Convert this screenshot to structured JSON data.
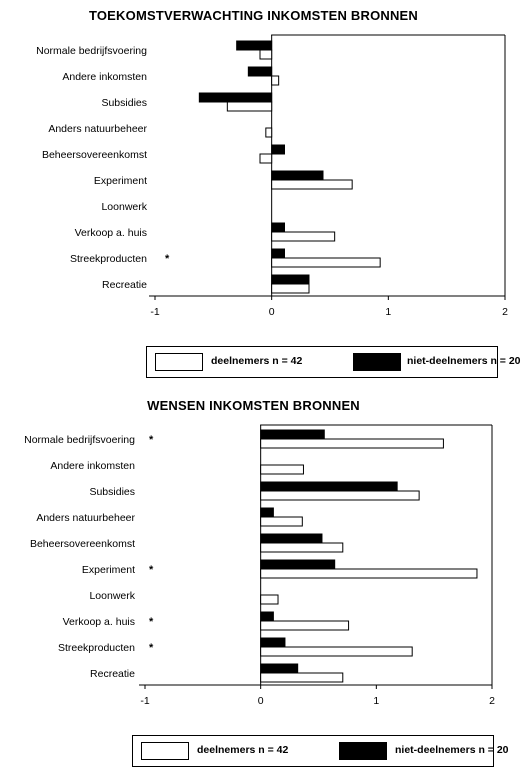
{
  "chart_data": [
    {
      "type": "bar",
      "orientation": "horizontal",
      "title": "TOEKOMSTVERWACHTING INKOMSTEN BRONNEN",
      "categories": [
        "Normale bedrijfsvoering",
        "Andere inkomsten",
        "Subsidies",
        "Anders natuurbeheer",
        "Beheersovereenkomst",
        "Experiment",
        "Loonwerk",
        "Verkoop a. huis",
        "Streekproducten",
        "Recreatie"
      ],
      "series": [
        {
          "name": "deelnemers n = 42",
          "color": "#ffffff",
          "values": [
            -0.1,
            0.06,
            -0.38,
            -0.05,
            -0.1,
            0.69,
            0.0,
            0.54,
            0.93,
            0.32
          ]
        },
        {
          "name": "niet-deelnemers n = 20",
          "color": "#000000",
          "values": [
            -0.3,
            -0.2,
            -0.62,
            0.0,
            0.11,
            0.44,
            0.0,
            0.11,
            0.11,
            0.32
          ]
        }
      ],
      "significant": [
        "",
        "",
        "",
        "",
        "",
        "",
        "",
        "",
        "*",
        ""
      ],
      "xlim": [
        -1,
        2
      ],
      "xticks": [
        "-1",
        "0",
        "1",
        "2"
      ],
      "legend": "bottom"
    },
    {
      "type": "bar",
      "orientation": "horizontal",
      "title": "WENSEN INKOMSTEN BRONNEN",
      "categories": [
        "Normale bedrijfsvoering",
        "Andere inkomsten",
        "Subsidies",
        "Anders natuurbeheer",
        "Beheersovereenkomst",
        "Experiment",
        "Loonwerk",
        "Verkoop a. huis",
        "Streekproducten",
        "Recreatie"
      ],
      "series": [
        {
          "name": "deelnemers n = 42",
          "color": "#ffffff",
          "values": [
            1.58,
            0.37,
            1.37,
            0.36,
            0.71,
            1.87,
            0.15,
            0.76,
            1.31,
            0.71
          ]
        },
        {
          "name": "niet-deelnemers n = 20",
          "color": "#000000",
          "values": [
            0.55,
            0.0,
            1.18,
            0.11,
            0.53,
            0.64,
            0.0,
            0.11,
            0.21,
            0.32
          ]
        }
      ],
      "significant": [
        "*",
        "",
        "",
        "",
        "",
        "*",
        "",
        "*",
        "*",
        ""
      ],
      "xlim": [
        -1,
        2
      ],
      "xticks": [
        "-1",
        "0",
        "1",
        "2"
      ],
      "legend": "bottom"
    }
  ]
}
